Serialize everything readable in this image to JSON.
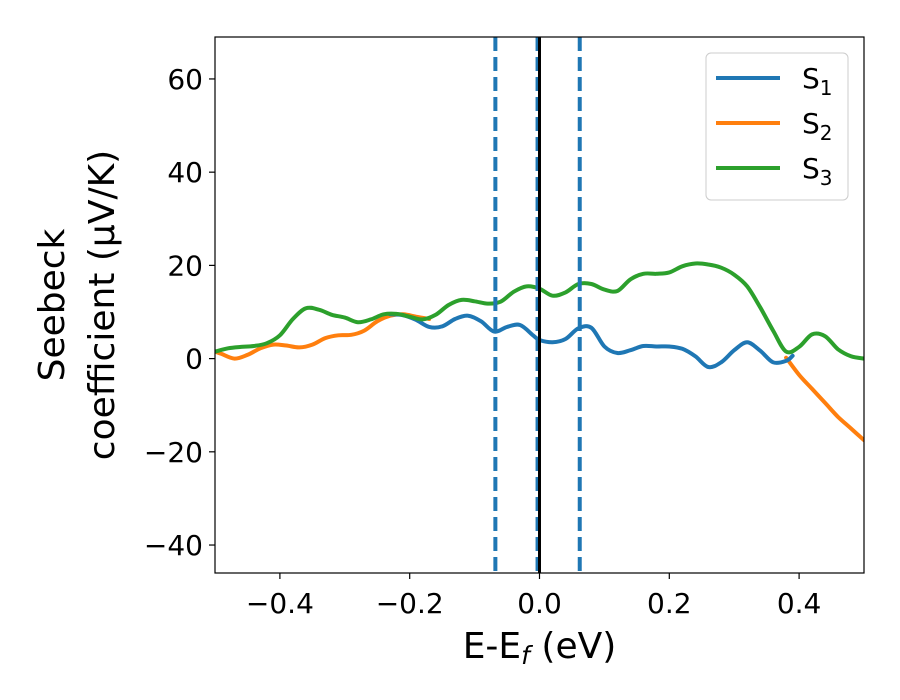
{
  "chart_data": {
    "type": "line",
    "xlabel": "E-E",
    "xlabel_sub": "f",
    "xlabel_unit": " (eV)",
    "ylabel_line1": "Seebeck",
    "ylabel_line2": "coefficient  (μV/K)",
    "xlim": [
      -0.5,
      0.5
    ],
    "ylim": [
      -46,
      69
    ],
    "xticks": [
      -0.4,
      -0.2,
      0.0,
      0.2,
      0.4
    ],
    "xtick_labels": [
      "−0.4",
      "−0.2",
      "0.0",
      "0.2",
      "0.4"
    ],
    "yticks": [
      -40,
      -20,
      0,
      20,
      40,
      60
    ],
    "ytick_labels": [
      "−40",
      "−20",
      "0",
      "20",
      "40",
      "60"
    ],
    "grid": false,
    "legend_position": "top-right",
    "vlines": [
      {
        "x": -0.068,
        "style": "dashed",
        "color": "#1f77b4"
      },
      {
        "x": 0.062,
        "style": "dashed",
        "color": "#1f77b4"
      },
      {
        "x": -0.003,
        "style": "dashed",
        "color": "#1f77b4"
      },
      {
        "x": 0.0,
        "style": "solid",
        "color": "#000000"
      }
    ],
    "series": [
      {
        "name": "S",
        "sub": "2",
        "color": "#ff7f0e",
        "x": [
          -0.5,
          -0.49,
          -0.47,
          -0.45,
          -0.43,
          -0.41,
          -0.39,
          -0.37,
          -0.35,
          -0.33,
          -0.31,
          -0.29,
          -0.27,
          -0.25,
          -0.23,
          -0.21,
          -0.19,
          -0.17,
          0.38,
          0.4,
          0.42,
          0.44,
          0.46,
          0.48,
          0.5
        ],
        "y": [
          1.5,
          1.0,
          0.0,
          0.8,
          2.2,
          3.0,
          2.8,
          2.4,
          3.0,
          4.4,
          5.0,
          5.1,
          6.0,
          8.0,
          9.2,
          9.5,
          9.0,
          8.5,
          0.2,
          -3.5,
          -6.5,
          -9.5,
          -12.5,
          -15.0,
          -17.5
        ]
      },
      {
        "name": "S",
        "sub": "1",
        "color": "#1f77b4",
        "x": [
          -0.23,
          -0.21,
          -0.19,
          -0.17,
          -0.15,
          -0.13,
          -0.11,
          -0.09,
          -0.07,
          -0.05,
          -0.03,
          -0.01,
          0.0,
          0.02,
          0.04,
          0.06,
          0.08,
          0.1,
          0.12,
          0.14,
          0.16,
          0.18,
          0.2,
          0.22,
          0.24,
          0.26,
          0.28,
          0.3,
          0.32,
          0.34,
          0.36,
          0.38,
          0.39
        ],
        "y": [
          9.5,
          9.3,
          8.3,
          6.8,
          6.9,
          8.5,
          9.2,
          8.0,
          5.8,
          6.8,
          7.2,
          5.0,
          4.0,
          3.5,
          4.2,
          6.5,
          6.6,
          2.6,
          1.2,
          1.8,
          2.7,
          2.6,
          2.6,
          2.1,
          0.5,
          -1.8,
          -0.8,
          1.8,
          3.5,
          1.7,
          -0.8,
          -0.5,
          0.6
        ]
      },
      {
        "name": "S",
        "sub": "3",
        "color": "#2ca02c",
        "x": [
          -0.5,
          -0.48,
          -0.46,
          -0.44,
          -0.42,
          -0.4,
          -0.38,
          -0.36,
          -0.34,
          -0.32,
          -0.3,
          -0.28,
          -0.26,
          -0.24,
          -0.22,
          -0.2,
          -0.18,
          -0.16,
          -0.14,
          -0.12,
          -0.1,
          -0.08,
          -0.06,
          -0.04,
          -0.02,
          0.0,
          0.02,
          0.04,
          0.06,
          0.08,
          0.1,
          0.12,
          0.14,
          0.16,
          0.18,
          0.2,
          0.22,
          0.24,
          0.26,
          0.28,
          0.3,
          0.32,
          0.34,
          0.36,
          0.38,
          0.4,
          0.42,
          0.44,
          0.46,
          0.48,
          0.5
        ],
        "y": [
          1.5,
          2.2,
          2.5,
          2.7,
          3.3,
          5.0,
          8.5,
          10.8,
          10.5,
          9.4,
          8.8,
          7.8,
          8.4,
          9.5,
          9.6,
          9.0,
          8.4,
          9.4,
          11.5,
          12.6,
          12.3,
          11.8,
          12.2,
          14.3,
          15.5,
          15.0,
          13.5,
          14.2,
          16.0,
          16.0,
          14.8,
          14.5,
          17.0,
          18.2,
          18.2,
          18.5,
          19.8,
          20.4,
          20.2,
          19.5,
          18.0,
          15.5,
          11.0,
          6.0,
          1.5,
          2.5,
          5.2,
          4.8,
          2.0,
          0.5,
          0.0
        ]
      }
    ],
    "legend_order": [
      1,
      0,
      2
    ]
  }
}
